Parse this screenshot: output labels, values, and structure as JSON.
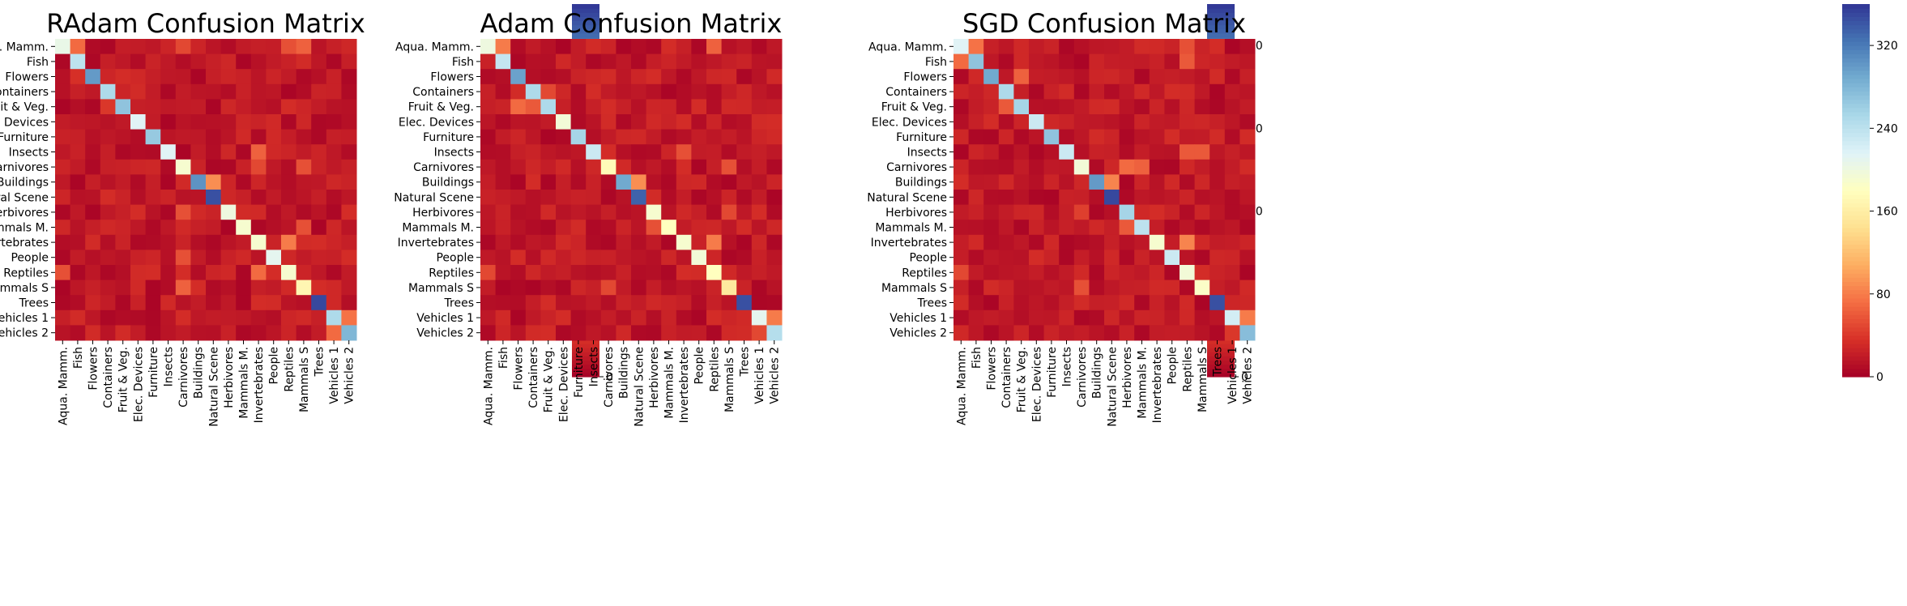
{
  "chart_data": [
    {
      "type": "heatmap",
      "title": "RAdam Confusion Matrix",
      "categories": [
        "Aqua. Mamm.",
        "Fish",
        "Flowers",
        "Containers",
        "Fruit & Veg.",
        "Elec. Devices",
        "Furniture",
        "Insects",
        "Carnivores",
        "Buildings",
        "Natural Scene",
        "Herbivores",
        "Mammals M.",
        "Invertebrates",
        "People",
        "Reptiles",
        "Mammals S",
        "Trees",
        "Vehicles 1",
        "Vehicles 2"
      ],
      "colorbar": {
        "min": 0,
        "max": 360,
        "ticks": [
          0,
          80,
          160,
          240,
          320
        ]
      },
      "colormap": "RdYlBu",
      "diagonal": [
        205,
        240,
        300,
        250,
        270,
        215,
        265,
        215,
        190,
        305,
        345,
        200,
        190,
        190,
        210,
        190,
        170,
        350,
        250,
        280
      ],
      "offdiag": [
        {
          "row": 0,
          "col": 1,
          "value": 70
        },
        {
          "row": 0,
          "col": 8,
          "value": 50
        },
        {
          "row": 0,
          "col": 15,
          "value": 55
        },
        {
          "row": 0,
          "col": 16,
          "value": 65
        },
        {
          "row": 2,
          "col": 1,
          "value": 35
        },
        {
          "row": 4,
          "col": 3,
          "value": 40
        },
        {
          "row": 7,
          "col": 13,
          "value": 65
        },
        {
          "row": 8,
          "col": 13,
          "value": 50
        },
        {
          "row": 8,
          "col": 16,
          "value": 55
        },
        {
          "row": 9,
          "col": 10,
          "value": 90
        },
        {
          "row": 11,
          "col": 8,
          "value": 55
        },
        {
          "row": 12,
          "col": 16,
          "value": 55
        },
        {
          "row": 13,
          "col": 15,
          "value": 80
        },
        {
          "row": 14,
          "col": 8,
          "value": 55
        },
        {
          "row": 15,
          "col": 0,
          "value": 55
        },
        {
          "row": 15,
          "col": 13,
          "value": 70
        },
        {
          "row": 16,
          "col": 8,
          "value": 65
        },
        {
          "row": 18,
          "col": 19,
          "value": 75
        },
        {
          "row": 19,
          "col": 18,
          "value": 70
        }
      ]
    },
    {
      "type": "heatmap",
      "title": "Adam Confusion Matrix",
      "categories": [
        "Aqua. Mamm.",
        "Fish",
        "Flowers",
        "Containers",
        "Fruit & Veg.",
        "Elec. Devices",
        "Furniture",
        "Insects",
        "Carnivores",
        "Buildings",
        "Natural Scene",
        "Herbivores",
        "Mammals M.",
        "Invertebrates",
        "People",
        "Reptiles",
        "Mammals S",
        "Trees",
        "Vehicles 1",
        "Vehicles 2"
      ],
      "colorbar": {
        "min": 0,
        "max": 360,
        "ticks": [
          0,
          80,
          160,
          240,
          320
        ]
      },
      "colormap": "RdYlBu",
      "diagonal": [
        200,
        235,
        295,
        250,
        250,
        195,
        255,
        230,
        175,
        290,
        335,
        190,
        180,
        190,
        195,
        180,
        155,
        345,
        210,
        245
      ],
      "offdiag": [
        {
          "row": 0,
          "col": 1,
          "value": 80
        },
        {
          "row": 0,
          "col": 15,
          "value": 65
        },
        {
          "row": 3,
          "col": 4,
          "value": 50
        },
        {
          "row": 4,
          "col": 2,
          "value": 70
        },
        {
          "row": 4,
          "col": 3,
          "value": 60
        },
        {
          "row": 7,
          "col": 13,
          "value": 55
        },
        {
          "row": 8,
          "col": 16,
          "value": 55
        },
        {
          "row": 9,
          "col": 10,
          "value": 90
        },
        {
          "row": 11,
          "col": 16,
          "value": 50
        },
        {
          "row": 12,
          "col": 11,
          "value": 55
        },
        {
          "row": 13,
          "col": 15,
          "value": 80
        },
        {
          "row": 15,
          "col": 0,
          "value": 50
        },
        {
          "row": 16,
          "col": 8,
          "value": 50
        },
        {
          "row": 18,
          "col": 19,
          "value": 80
        },
        {
          "row": 19,
          "col": 18,
          "value": 50
        }
      ]
    },
    {
      "type": "heatmap",
      "title": "SGD Confusion Matrix",
      "categories": [
        "Aqua. Mamm.",
        "Fish",
        "Flowers",
        "Containers",
        "Fruit & Veg.",
        "Elec. Devices",
        "Furniture",
        "Insects",
        "Carnivores",
        "Buildings",
        "Natural Scene",
        "Herbivores",
        "Mammals M.",
        "Invertebrates",
        "People",
        "Reptiles",
        "Mammals S",
        "Trees",
        "Vehicles 1",
        "Vehicles 2"
      ],
      "colorbar": {
        "min": 0,
        "max": 360,
        "ticks": [
          0,
          80,
          160,
          240,
          320
        ]
      },
      "colormap": "RdYlBu",
      "diagonal": [
        215,
        270,
        290,
        250,
        255,
        230,
        270,
        230,
        195,
        300,
        350,
        255,
        240,
        190,
        230,
        195,
        185,
        345,
        225,
        275
      ],
      "offdiag": [
        {
          "row": 0,
          "col": 1,
          "value": 75
        },
        {
          "row": 0,
          "col": 15,
          "value": 55
        },
        {
          "row": 1,
          "col": 0,
          "value": 70
        },
        {
          "row": 1,
          "col": 15,
          "value": 60
        },
        {
          "row": 2,
          "col": 4,
          "value": 65
        },
        {
          "row": 4,
          "col": 3,
          "value": 60
        },
        {
          "row": 7,
          "col": 15,
          "value": 60
        },
        {
          "row": 7,
          "col": 16,
          "value": 60
        },
        {
          "row": 8,
          "col": 11,
          "value": 70
        },
        {
          "row": 8,
          "col": 12,
          "value": 65
        },
        {
          "row": 9,
          "col": 10,
          "value": 85
        },
        {
          "row": 11,
          "col": 8,
          "value": 45
        },
        {
          "row": 12,
          "col": 11,
          "value": 60
        },
        {
          "row": 13,
          "col": 15,
          "value": 85
        },
        {
          "row": 15,
          "col": 0,
          "value": 50
        },
        {
          "row": 16,
          "col": 8,
          "value": 55
        },
        {
          "row": 18,
          "col": 19,
          "value": 80
        },
        {
          "row": 19,
          "col": 18,
          "value": 40
        }
      ]
    }
  ]
}
